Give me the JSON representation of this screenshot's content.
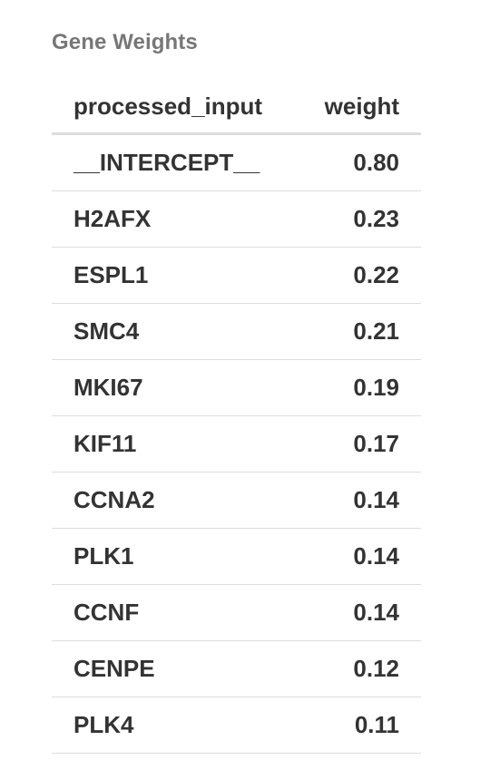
{
  "caption": "Gene Weights",
  "table": {
    "columns": [
      "processed_input",
      "weight"
    ],
    "rows": [
      {
        "processed_input": "__INTERCEPT__",
        "weight": "0.80"
      },
      {
        "processed_input": "H2AFX",
        "weight": "0.23"
      },
      {
        "processed_input": "ESPL1",
        "weight": "0.22"
      },
      {
        "processed_input": "SMC4",
        "weight": "0.21"
      },
      {
        "processed_input": "MKI67",
        "weight": "0.19"
      },
      {
        "processed_input": "KIF11",
        "weight": "0.17"
      },
      {
        "processed_input": "CCNA2",
        "weight": "0.14"
      },
      {
        "processed_input": "PLK1",
        "weight": "0.14"
      },
      {
        "processed_input": "CCNF",
        "weight": "0.14"
      },
      {
        "processed_input": "CENPE",
        "weight": "0.12"
      },
      {
        "processed_input": "PLK4",
        "weight": "0.11"
      }
    ]
  }
}
